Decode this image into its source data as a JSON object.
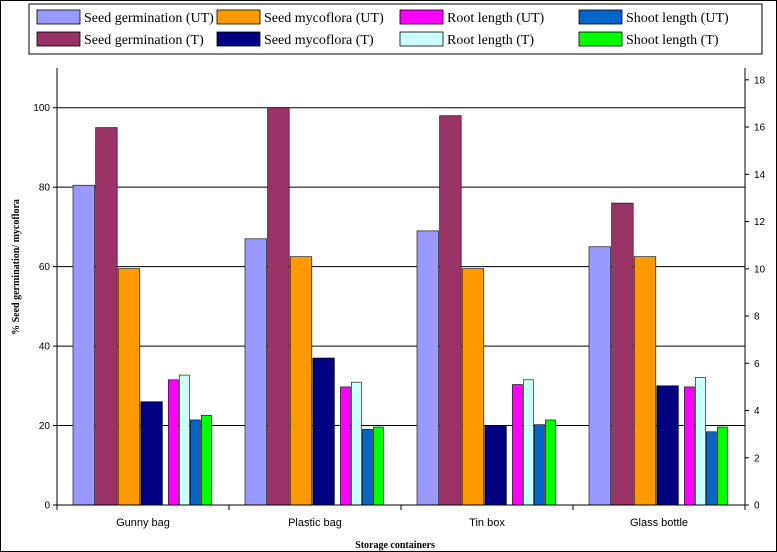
{
  "chart_data": {
    "type": "bar",
    "title": "",
    "xlabel": "Storage containers",
    "ylabel": "% Seed germination/ mycoflora",
    "ylabel_right": "",
    "categories": [
      "Gunny bag",
      "Plastic bag",
      "Tin box",
      "Glass bottle"
    ],
    "ylim": [
      0,
      110
    ],
    "yticks": [
      0,
      20,
      40,
      60,
      80,
      100
    ],
    "ylim_right": [
      0,
      18.5
    ],
    "yticks_right": [
      0,
      2,
      4,
      6,
      8,
      10,
      12,
      14,
      16,
      18
    ],
    "grid": true,
    "legend_position": "top",
    "series": [
      {
        "name": "Seed germination (UT)",
        "axis": "left",
        "color": "#9999ff",
        "values": [
          80.5,
          67,
          69,
          65
        ]
      },
      {
        "name": "Seed germination (T)",
        "axis": "left",
        "color": "#993366",
        "values": [
          95,
          100,
          98,
          76
        ]
      },
      {
        "name": "Seed mycoflora (UT)",
        "axis": "left",
        "color": "#ff9900",
        "values": [
          59.5,
          62.5,
          59.5,
          62.5
        ]
      },
      {
        "name": "Seed mycoflora (T)",
        "axis": "left",
        "color": "#000080",
        "values": [
          26,
          37,
          20,
          30
        ]
      },
      {
        "name": "Root length (UT)",
        "axis": "right",
        "color": "#ff00ff",
        "values": [
          5.3,
          5.0,
          5.1,
          5.0
        ]
      },
      {
        "name": "Root length (T)",
        "axis": "right",
        "color": "#ccffff",
        "values": [
          5.5,
          5.2,
          5.3,
          5.4
        ]
      },
      {
        "name": "Shoot length (UT)",
        "axis": "right",
        "color": "#0066cc",
        "values": [
          3.6,
          3.2,
          3.4,
          3.1
        ]
      },
      {
        "name": "Shoot length (T)",
        "axis": "right",
        "color": "#00ff00",
        "values": [
          3.8,
          3.3,
          3.6,
          3.3
        ]
      }
    ]
  }
}
